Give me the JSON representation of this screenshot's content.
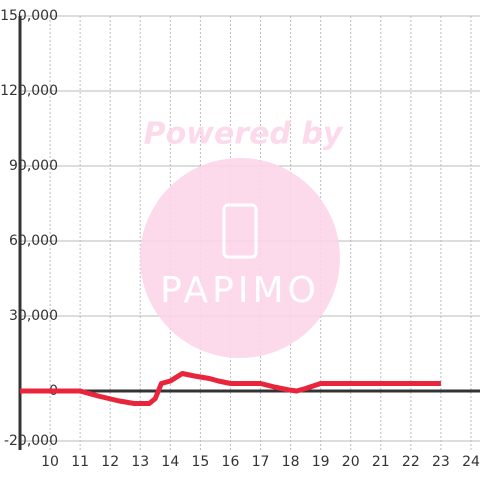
{
  "chart_data": {
    "type": "line",
    "x": [
      9.0,
      11.0,
      11.3,
      11.6,
      12.3,
      12.8,
      13.3,
      13.5,
      13.7,
      14.0,
      14.4,
      14.8,
      15.3,
      15.6,
      16.0,
      16.4,
      17.0,
      17.5,
      17.9,
      18.2,
      18.5,
      19.0,
      23.0
    ],
    "series": [
      {
        "color": "#e8253b",
        "values": [
          0,
          0,
          -1000,
          -2000,
          -4000,
          -5000,
          -5000,
          -3000,
          3000,
          4000,
          7000,
          6000,
          5000,
          4000,
          3000,
          3000,
          3000,
          1500,
          500,
          0,
          1000,
          3000,
          3000
        ]
      }
    ],
    "xlim": [
      9,
      24.3
    ],
    "xticks": [
      10,
      11,
      12,
      13,
      14,
      15,
      16,
      17,
      18,
      19,
      20,
      21,
      22,
      23,
      24
    ],
    "ylim": [
      -23600,
      150000
    ],
    "yticks": [
      {
        "value": -20000,
        "label": "-20,000"
      },
      0,
      {
        "value": 30000,
        "label": "30,000"
      },
      {
        "value": 60000,
        "label": "60,000"
      },
      {
        "value": 90000,
        "label": "90,000"
      },
      {
        "value": 120000,
        "label": "120,000"
      },
      {
        "value": 150000,
        "label": "150,000"
      }
    ],
    "grid": true
  },
  "watermark": {
    "text": "Powered by",
    "logo": "PAPIMO"
  }
}
